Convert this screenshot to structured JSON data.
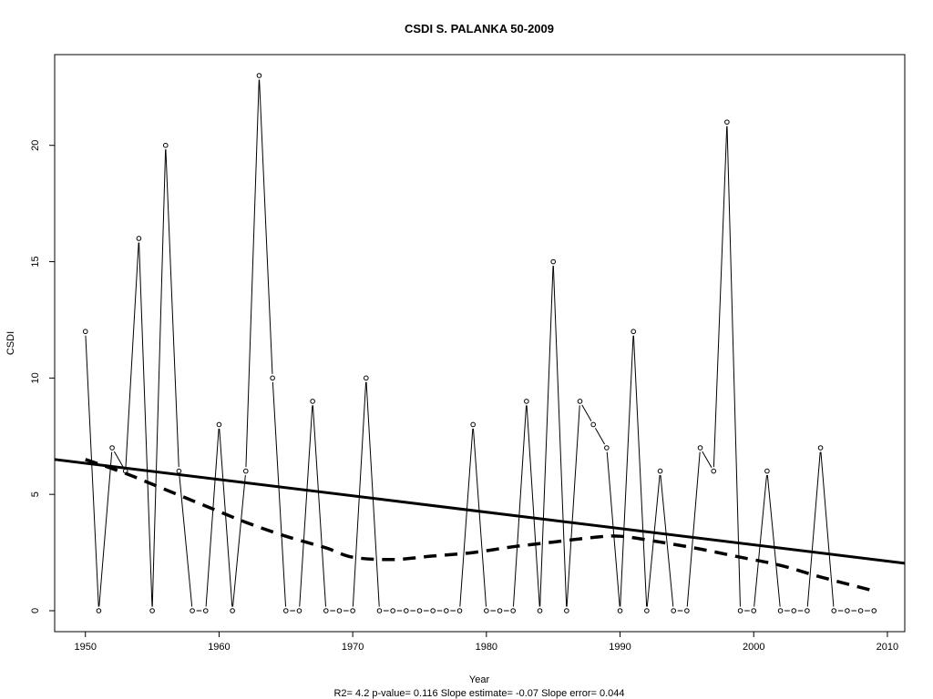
{
  "chart_data": {
    "type": "line",
    "title": "CSDI   S. PALANKA 50-2009",
    "xlabel": "Year",
    "ylabel": "CSDI",
    "footer": "R2= 4.2  p-value= 0.116  Slope estimate= -0.07  Slope error= 0.044",
    "xlim": [
      1947.7,
      2011.3
    ],
    "ylim": [
      -0.9,
      23.9
    ],
    "x_ticks": [
      1950,
      1960,
      1970,
      1980,
      1990,
      2000,
      2010
    ],
    "y_ticks": [
      0,
      5,
      10,
      15,
      20
    ],
    "x": [
      1950,
      1951,
      1952,
      1953,
      1954,
      1955,
      1956,
      1957,
      1958,
      1959,
      1960,
      1961,
      1962,
      1963,
      1964,
      1965,
      1966,
      1967,
      1968,
      1969,
      1970,
      1971,
      1972,
      1973,
      1974,
      1975,
      1976,
      1977,
      1978,
      1979,
      1980,
      1981,
      1982,
      1983,
      1984,
      1985,
      1986,
      1987,
      1988,
      1989,
      1990,
      1991,
      1992,
      1993,
      1994,
      1995,
      1996,
      1997,
      1998,
      1999,
      2000,
      2001,
      2002,
      2003,
      2004,
      2005,
      2006,
      2007,
      2008,
      2009
    ],
    "values": [
      12,
      0,
      7,
      6,
      16,
      0,
      20,
      6,
      0,
      0,
      8,
      0,
      6,
      23,
      10,
      0,
      0,
      9,
      0,
      0,
      0,
      10,
      0,
      0,
      0,
      0,
      0,
      0,
      0,
      8,
      0,
      0,
      0,
      9,
      0,
      15,
      0,
      9,
      8,
      7,
      0,
      12,
      0,
      6,
      0,
      0,
      7,
      6,
      21,
      0,
      0,
      6,
      0,
      0,
      0,
      7,
      0,
      0,
      0,
      0
    ],
    "trend_line": {
      "x": [
        1947.7,
        2011.3
      ],
      "y": [
        6.5,
        2.04
      ]
    },
    "smooth_line": {
      "x": [
        1950,
        1953,
        1956,
        1959,
        1962,
        1965,
        1968,
        1970,
        1973,
        1976,
        1979,
        1982,
        1985,
        1988,
        1990,
        1993,
        1996,
        1999,
        2002,
        2005,
        2009
      ],
      "y": [
        6.5,
        5.9,
        5.2,
        4.5,
        3.8,
        3.2,
        2.7,
        2.3,
        2.2,
        2.35,
        2.5,
        2.75,
        2.95,
        3.15,
        3.2,
        2.95,
        2.65,
        2.3,
        1.95,
        1.45,
        0.85
      ]
    }
  }
}
